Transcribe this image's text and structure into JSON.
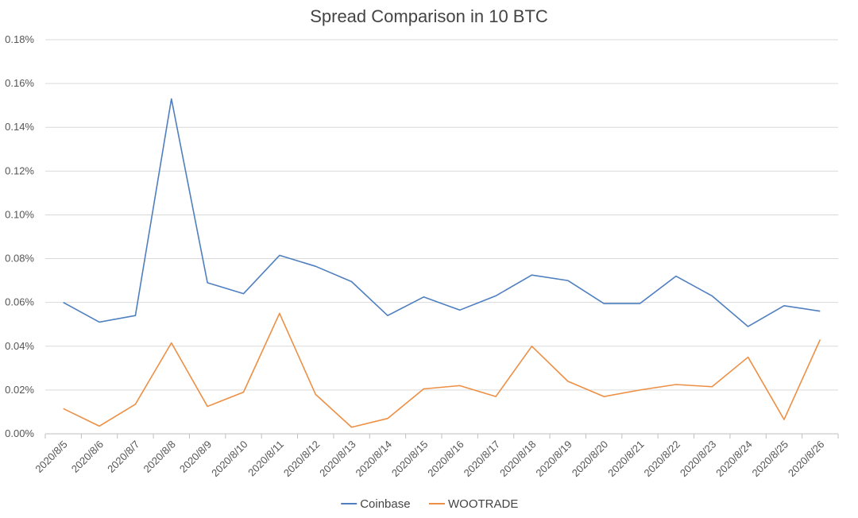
{
  "chart_data": {
    "type": "line",
    "title": "Spread Comparison in 10 BTC",
    "xlabel": "",
    "ylabel": "",
    "categories": [
      "2020/8/5",
      "2020/8/6",
      "2020/8/7",
      "2020/8/8",
      "2020/8/9",
      "2020/8/10",
      "2020/8/11",
      "2020/8/12",
      "2020/8/13",
      "2020/8/14",
      "2020/8/15",
      "2020/8/16",
      "2020/8/17",
      "2020/8/18",
      "2020/8/19",
      "2020/8/20",
      "2020/8/21",
      "2020/8/22",
      "2020/8/23",
      "2020/8/24",
      "2020/8/25",
      "2020/8/26"
    ],
    "series": [
      {
        "name": "Coinbase",
        "color": "#4f7fbf",
        "values": [
          0.06,
          0.051,
          0.054,
          0.153,
          0.069,
          0.064,
          0.0815,
          0.0765,
          0.0695,
          0.054,
          0.0625,
          0.0565,
          0.063,
          0.0725,
          0.07,
          0.0595,
          0.0595,
          0.072,
          0.063,
          0.049,
          0.0585,
          0.056
        ]
      },
      {
        "name": "WOOTRADE",
        "color": "#ed8f44",
        "values": [
          0.0115,
          0.0035,
          0.0135,
          0.0415,
          0.0125,
          0.019,
          0.055,
          0.018,
          0.003,
          0.007,
          0.0205,
          0.022,
          0.017,
          0.04,
          0.024,
          0.017,
          0.02,
          0.0225,
          0.0215,
          0.035,
          0.0065,
          0.043
        ]
      }
    ],
    "ylim": [
      0,
      0.18
    ],
    "yticks": [
      0,
      0.02,
      0.04,
      0.06,
      0.08,
      0.1,
      0.12,
      0.14,
      0.16,
      0.18
    ],
    "ytick_labels": [
      "0.00%",
      "0.02%",
      "0.04%",
      "0.06%",
      "0.08%",
      "0.10%",
      "0.12%",
      "0.14%",
      "0.16%",
      "0.18%"
    ],
    "y_unit": "%",
    "grid": true,
    "legend": "bottom-center"
  }
}
